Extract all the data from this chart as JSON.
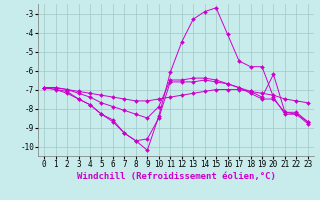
{
  "background_color": "#c8ecec",
  "grid_color": "#a0c8c8",
  "line_color": "#cc00cc",
  "marker": "D",
  "marker_size": 2,
  "xlabel": "Windchill (Refroidissement éolien,°C)",
  "xlabel_fontsize": 6.5,
  "tick_fontsize": 5.5,
  "xlim": [
    -0.5,
    23.5
  ],
  "ylim": [
    -10.5,
    -2.5
  ],
  "yticks": [
    -10,
    -9,
    -8,
    -7,
    -6,
    -5,
    -4,
    -3
  ],
  "xticks": [
    0,
    1,
    2,
    3,
    4,
    5,
    6,
    7,
    8,
    9,
    10,
    11,
    12,
    13,
    14,
    15,
    16,
    17,
    18,
    19,
    20,
    21,
    22,
    23
  ],
  "series": [
    {
      "x": [
        0,
        1,
        2,
        3,
        4,
        5,
        6,
        7,
        8,
        9,
        10,
        11,
        12,
        13,
        14,
        15,
        16,
        17,
        18,
        19,
        20,
        21,
        22,
        23
      ],
      "y": [
        -6.9,
        -6.9,
        -7.0,
        -7.1,
        -7.2,
        -7.3,
        -7.4,
        -7.5,
        -7.6,
        -7.6,
        -7.5,
        -7.4,
        -7.3,
        -7.2,
        -7.1,
        -7.0,
        -7.0,
        -7.0,
        -7.1,
        -7.2,
        -7.3,
        -7.5,
        -7.6,
        -7.7
      ]
    },
    {
      "x": [
        0,
        1,
        2,
        3,
        4,
        5,
        6,
        7,
        8,
        9,
        10,
        11,
        12,
        13,
        14,
        15,
        16,
        17,
        18,
        19,
        20,
        21,
        22,
        23
      ],
      "y": [
        -6.9,
        -7.0,
        -7.2,
        -7.5,
        -7.8,
        -8.3,
        -8.6,
        -9.3,
        -9.7,
        -9.6,
        -8.5,
        -6.6,
        -6.6,
        -6.6,
        -6.5,
        -6.6,
        -6.7,
        -6.9,
        -7.1,
        -7.4,
        -6.2,
        -8.2,
        -8.2,
        -8.7
      ]
    },
    {
      "x": [
        0,
        2,
        3,
        4,
        5,
        6,
        7,
        8,
        9,
        10,
        11,
        12,
        13,
        14,
        15,
        16,
        17,
        18,
        19,
        20,
        21,
        22,
        23
      ],
      "y": [
        -6.9,
        -7.1,
        -7.5,
        -7.8,
        -8.3,
        -8.7,
        -9.3,
        -9.7,
        -10.2,
        -8.4,
        -6.1,
        -4.5,
        -3.3,
        -2.9,
        -2.7,
        -4.1,
        -5.5,
        -5.8,
        -5.8,
        -7.4,
        -8.3,
        -8.3,
        -8.7
      ]
    },
    {
      "x": [
        0,
        1,
        2,
        3,
        4,
        5,
        6,
        7,
        8,
        9,
        10,
        11,
        12,
        13,
        14,
        15,
        16,
        17,
        18,
        19,
        20,
        21,
        22,
        23
      ],
      "y": [
        -6.9,
        -6.9,
        -7.0,
        -7.2,
        -7.4,
        -7.7,
        -7.9,
        -8.1,
        -8.3,
        -8.5,
        -7.9,
        -6.5,
        -6.5,
        -6.4,
        -6.4,
        -6.5,
        -6.7,
        -6.9,
        -7.2,
        -7.5,
        -7.5,
        -8.2,
        -8.3,
        -8.8
      ]
    }
  ]
}
